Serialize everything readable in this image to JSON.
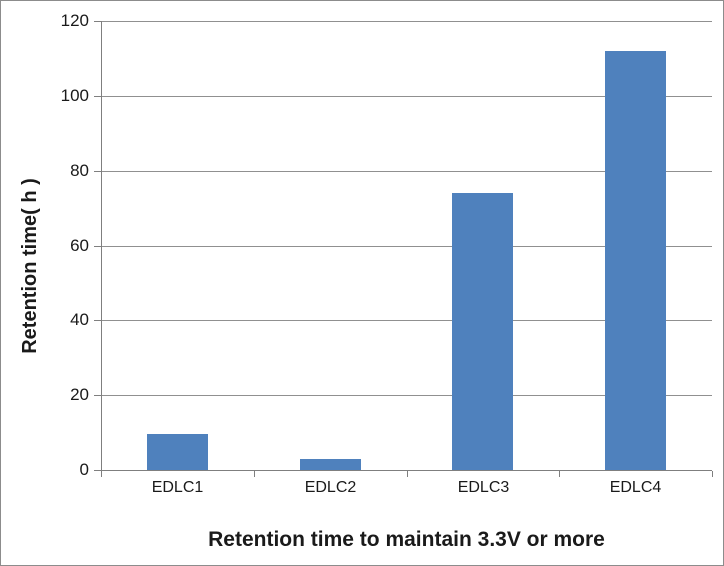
{
  "chart_data": {
    "type": "bar",
    "title": "Retention time to maintain 3.3V or more",
    "ylabel": "Retention time( h )",
    "xlabel": "",
    "categories": [
      "EDLC1",
      "EDLC2",
      "EDLC3",
      "EDLC4"
    ],
    "values": [
      9.5,
      3,
      74,
      112
    ],
    "ylim": [
      0,
      120
    ],
    "yticks": [
      0,
      20,
      40,
      60,
      80,
      100,
      120
    ],
    "grid": true,
    "legend_position": "none",
    "colors": {
      "bar": "#4F81BD",
      "gridline": "#909090",
      "axis": "#7F7F7F",
      "frame_border": "#8C8C8C",
      "text": "#1A1A1A",
      "background": "#FFFFFF"
    }
  }
}
